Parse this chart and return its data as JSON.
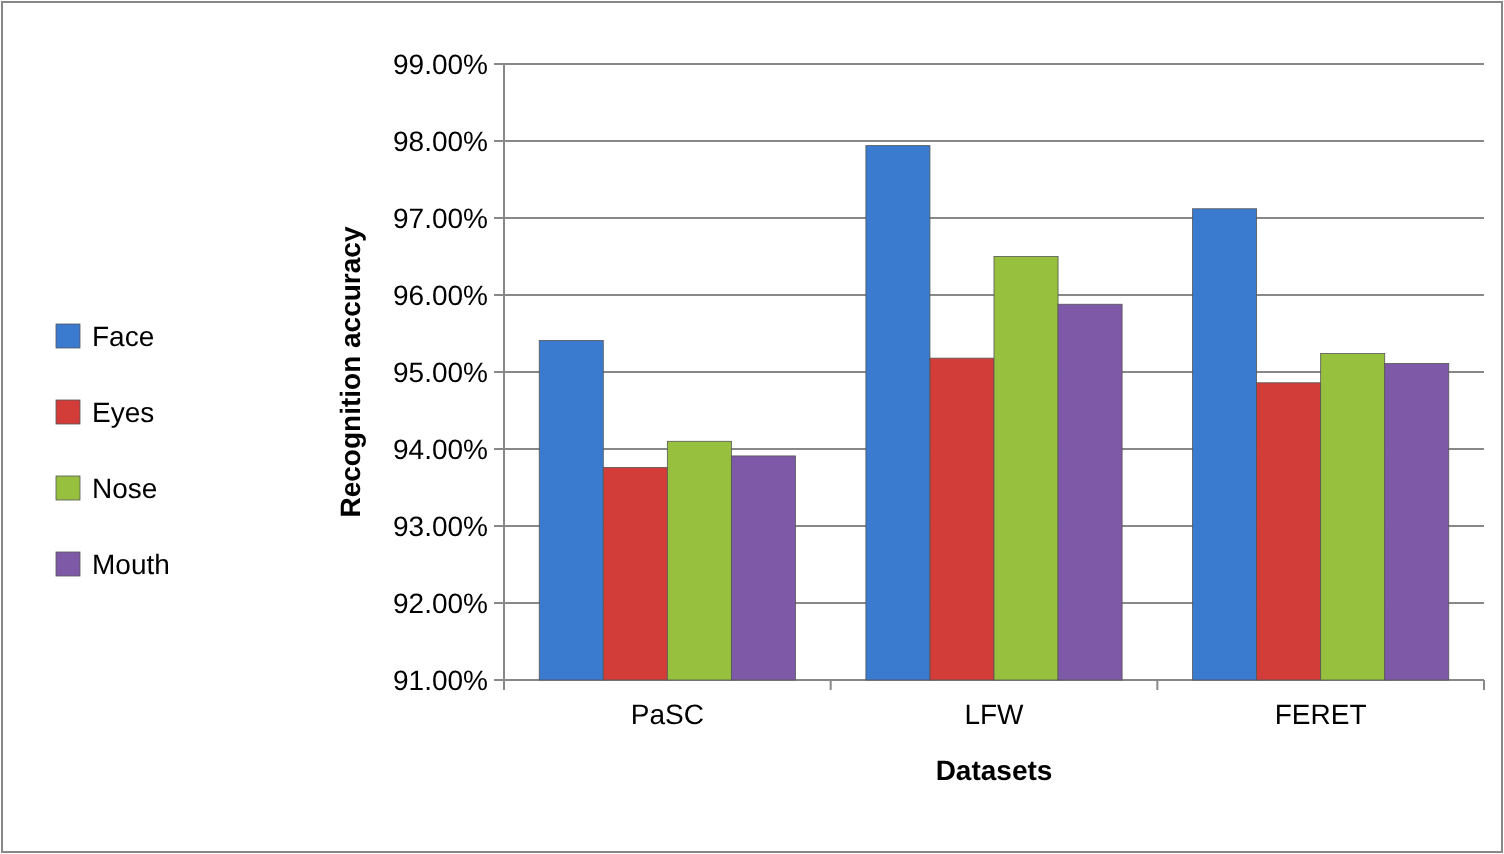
{
  "chart_data": {
    "type": "bar",
    "xlabel": "Datasets",
    "ylabel": "Recognition accuracy",
    "categories": [
      "PaSC",
      "LFW",
      "FERET"
    ],
    "series": [
      {
        "name": "Face",
        "color": "#3a7bd0",
        "values": [
          95.41,
          97.94,
          97.12
        ]
      },
      {
        "name": "Eyes",
        "color": "#d23d3a",
        "values": [
          93.76,
          95.18,
          94.86
        ]
      },
      {
        "name": "Nose",
        "color": "#96c03e",
        "values": [
          94.1,
          96.5,
          95.24
        ]
      },
      {
        "name": "Mouth",
        "color": "#7e59a8",
        "values": [
          93.91,
          95.88,
          95.11
        ]
      }
    ],
    "ylim": [
      91,
      99
    ],
    "yticks": [
      {
        "value": 91,
        "label": "91.00%"
      },
      {
        "value": 92,
        "label": "92.00%"
      },
      {
        "value": 93,
        "label": "93.00%"
      },
      {
        "value": 94,
        "label": "94.00%"
      },
      {
        "value": 95,
        "label": "95.00%"
      },
      {
        "value": 96,
        "label": "96.00%"
      },
      {
        "value": 97,
        "label": "97.00%"
      },
      {
        "value": 98,
        "label": "98.00%"
      },
      {
        "value": 99,
        "label": "99.00%"
      }
    ],
    "grid": "y",
    "legend": "left"
  }
}
